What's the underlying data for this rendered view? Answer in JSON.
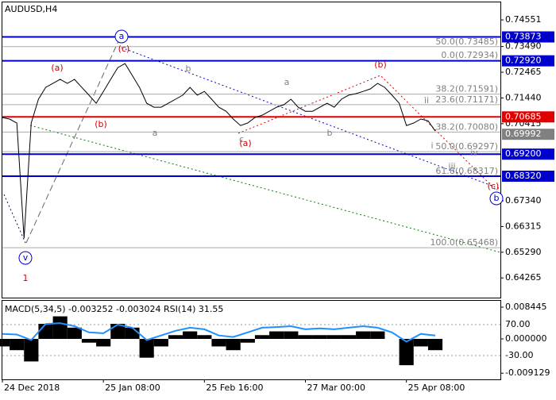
{
  "chart_data": [
    {
      "type": "line",
      "title": "AUDUSD,H4",
      "categories": [
        "24 Dec 2018",
        null,
        null,
        null,
        null,
        null,
        null,
        null,
        null,
        null,
        null,
        null,
        null,
        null,
        "25 Jan 08:00",
        null,
        null,
        null,
        null,
        null,
        null,
        null,
        null,
        null,
        null,
        null,
        null,
        null,
        "25 Feb 16:00",
        null,
        null,
        null,
        null,
        null,
        null,
        null,
        null,
        null,
        null,
        null,
        null,
        null,
        "27 Mar 00:00",
        null,
        null,
        null,
        null,
        null,
        null,
        null,
        null,
        null,
        null,
        null,
        null,
        null,
        "25 Apr 08:00",
        null,
        null,
        null,
        null
      ],
      "values": [
        0.7066,
        0.706,
        0.7044,
        0.6585,
        0.7044,
        0.7139,
        0.7186,
        0.7202,
        0.7218,
        0.7202,
        0.7218,
        0.7186,
        0.7155,
        0.7123,
        0.717,
        0.7218,
        0.7265,
        0.7281,
        0.7234,
        0.7186,
        0.7123,
        0.7107,
        0.7107,
        0.7123,
        0.7139,
        0.7155,
        0.7186,
        0.7155,
        0.717,
        0.7139,
        0.7107,
        0.7091,
        0.706,
        0.7034,
        0.7044,
        0.7066,
        0.7075,
        0.7091,
        0.7107,
        0.7117,
        0.7139,
        0.7107,
        0.7091,
        0.7091,
        0.7107,
        0.7123,
        0.7107,
        0.7139,
        0.7155,
        0.7161,
        0.717,
        0.718,
        0.7202,
        0.7186,
        0.7155,
        0.7123,
        0.7034,
        0.7044,
        0.706,
        0.7053,
        0.7012
      ],
      "color": "#000000",
      "ylim": [
        0.6348,
        0.7525
      ],
      "yticks": [
        0.74551,
        {
          "value": 0.7349,
          "label": "0.73490"
        },
        0.72465,
        {
          "value": 0.7144,
          "label": "0.71440"
        },
        0.70415,
        {
          "value": 0.6734,
          "label": "0.67340"
        },
        0.66315,
        {
          "value": 0.6529,
          "label": "0.65290"
        },
        0.64265
      ],
      "last_price": 0.69992,
      "levels": [
        {
          "value": 0.73873,
          "label": "0.73873",
          "color": "#0000cc"
        },
        {
          "value": 0.7292,
          "label": "0.72920",
          "color": "#0000cc"
        },
        {
          "value": 0.70685,
          "label": "0.70685",
          "color": "#e00000"
        },
        {
          "value": 0.692,
          "label": "0.69200",
          "color": "#0000cc"
        },
        {
          "value": 0.6832,
          "label": "0.68320",
          "color": "#0000cc"
        }
      ],
      "fib_levels": [
        {
          "value": 0.73485,
          "label": "50.0(0.73485)"
        },
        {
          "value": 0.72934,
          "label": "0.0(0.72934)"
        },
        {
          "value": 0.71591,
          "label": "38.2(0.71591)"
        },
        {
          "value": 0.71171,
          "label": "23.6(0.71171)"
        },
        {
          "value": 0.7008,
          "label": "38.2(0.70080)"
        },
        {
          "value": 0.69297,
          "label": "50.0(0.69297)"
        },
        {
          "value": 0.68317,
          "label": "61.8(0.68317)"
        },
        {
          "value": 0.65468,
          "label": "100.0(0.65468)"
        }
      ],
      "annotations": [
        {
          "text": "(a)",
          "color": "#d00000"
        },
        {
          "text": "(b)",
          "color": "#d00000"
        },
        {
          "text": "(c)",
          "color": "#d00000"
        },
        {
          "text": "a",
          "color": "#0000cc",
          "circled": true
        },
        {
          "text": "b",
          "color": "#808080"
        },
        {
          "text": "a",
          "color": "#808080"
        },
        {
          "text": "c",
          "color": "#808080"
        },
        {
          "text": "(a)",
          "color": "#d00000"
        },
        {
          "text": "a",
          "color": "#808080"
        },
        {
          "text": "b",
          "color": "#808080"
        },
        {
          "text": "(b)",
          "color": "#d00000"
        },
        {
          "text": "ii",
          "color": "#808080"
        },
        {
          "text": "i",
          "color": "#808080"
        },
        {
          "text": "iv",
          "color": "#808080"
        },
        {
          "text": "iii",
          "color": "#808080"
        },
        {
          "text": "v",
          "color": "#0000cc",
          "circled": true
        },
        {
          "text": "1",
          "color": "#d00000"
        },
        {
          "text": "b",
          "color": "#0000cc",
          "circled": true
        },
        {
          "text": "(c)",
          "color": "#d00000"
        }
      ]
    },
    {
      "type": "bar",
      "title": "MACD(5,34,5) -0.003252 -0.003024 RSI(14) 31.55",
      "values": [
        -0.002,
        -0.003,
        -0.006,
        0.004,
        0.006,
        0.003,
        -0.001,
        -0.002,
        0.004,
        0.003,
        -0.005,
        -0.002,
        0.001,
        0.002,
        0.001,
        -0.002,
        -0.003,
        -0.001,
        0.001,
        0.002,
        0.002,
        0.001,
        0.001,
        0.001,
        0.001,
        0.002,
        0.002,
        0.0,
        -0.007,
        -0.002,
        -0.003
      ],
      "color": "#000000",
      "series": [
        {
          "axis": "y2",
          "color": "#1e90ff",
          "values": [
            40,
            38,
            20,
            72,
            75,
            65,
            45,
            42,
            70,
            60,
            20,
            35,
            50,
            60,
            55,
            35,
            30,
            45,
            60,
            62,
            65,
            55,
            58,
            55,
            60,
            65,
            60,
            45,
            15,
            40,
            35
          ]
        }
      ],
      "ylim": [
        -0.01077,
        0.01035
      ],
      "yticks": [
        0.008445,
        {
          "value": 0,
          "label": "0.000000"
        },
        -0.009129
      ],
      "y2lim": [
        -106.9,
        149.5
      ],
      "y2ticks": [
        {
          "value": 70,
          "label": "70.00"
        },
        {
          "value": -30,
          "label": "-30.00"
        }
      ]
    }
  ]
}
